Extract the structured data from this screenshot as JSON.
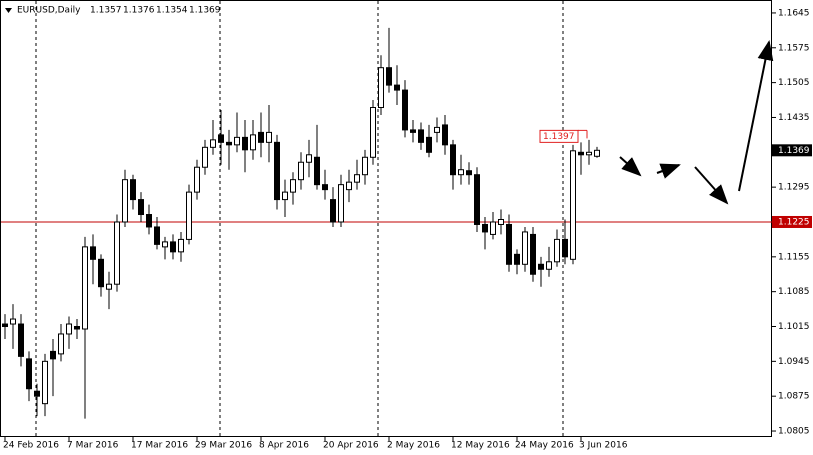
{
  "chart_data": {
    "type": "candlestick",
    "symbol": "EURUSD,Daily",
    "categories": [
      "24 Feb 2016",
      null,
      null,
      null,
      null,
      null,
      null,
      null,
      "7 Mar 2016",
      null,
      null,
      null,
      null,
      null,
      null,
      null,
      "17 Mar 2016",
      null,
      null,
      null,
      null,
      null,
      null,
      null,
      "29 Mar 2016",
      null,
      null,
      null,
      null,
      null,
      null,
      null,
      "8 Apr 2016",
      null,
      null,
      null,
      null,
      null,
      null,
      null,
      "20 Apr 2016",
      null,
      null,
      null,
      null,
      null,
      null,
      null,
      "2 May 2016",
      null,
      null,
      null,
      null,
      null,
      null,
      null,
      "12 May 2016",
      null,
      null,
      null,
      null,
      null,
      null,
      null,
      "24 May 2016",
      null,
      null,
      null,
      null,
      null,
      null,
      null,
      "3 Jun 2016",
      null,
      null
    ],
    "open": [
      1.102,
      1.102,
      1.102,
      1.095,
      1.0885,
      1.086,
      1.0965,
      1.096,
      1.1,
      1.1015,
      1.101,
      1.1175,
      1.115,
      1.109,
      1.11,
      1.1225,
      1.131,
      1.127,
      1.124,
      1.1215,
      1.1175,
      1.1185,
      1.1165,
      1.119,
      1.1285,
      1.1335,
      1.1375,
      1.14,
      1.1385,
      1.138,
      1.1395,
      1.137,
      1.1405,
      1.1385,
      1.1385,
      1.127,
      1.1285,
      1.131,
      1.1345,
      1.1355,
      1.13,
      1.127,
      1.1225,
      1.129,
      1.1305,
      1.132,
      1.1355,
      1.1455,
      1.1535,
      1.15,
      1.149,
      1.141,
      1.141,
      1.1395,
      1.1405,
      1.142,
      1.138,
      1.132,
      1.1328,
      1.132,
      1.122,
      1.12,
      1.122,
      1.122,
      1.116,
      1.114,
      1.12,
      1.114,
      1.113,
      1.1145,
      1.119,
      1.115,
      1.1365,
      1.136,
      1.1357
    ],
    "high": [
      1.104,
      1.106,
      1.104,
      1.0965,
      1.09,
      1.096,
      1.099,
      1.102,
      1.1035,
      1.103,
      1.1195,
      1.12,
      1.116,
      1.1125,
      1.124,
      1.133,
      1.132,
      1.1285,
      1.126,
      1.1235,
      1.1195,
      1.12,
      1.1205,
      1.13,
      1.135,
      1.139,
      1.143,
      1.145,
      1.141,
      1.1445,
      1.143,
      1.143,
      1.1445,
      1.146,
      1.14,
      1.131,
      1.1325,
      1.1365,
      1.139,
      1.142,
      1.133,
      1.1295,
      1.132,
      1.133,
      1.135,
      1.137,
      1.147,
      1.156,
      1.1615,
      1.154,
      1.151,
      1.143,
      1.1425,
      1.142,
      1.1435,
      1.144,
      1.139,
      1.136,
      1.1345,
      1.1335,
      1.1235,
      1.1245,
      1.125,
      1.124,
      1.117,
      1.1215,
      1.1215,
      1.1155,
      1.1175,
      1.121,
      1.123,
      1.138,
      1.1385,
      1.139,
      1.1376
    ],
    "low": [
      1.099,
      1.097,
      1.0935,
      1.0865,
      1.0835,
      1.0835,
      1.0875,
      1.0945,
      1.097,
      1.099,
      1.083,
      1.11,
      1.1075,
      1.105,
      1.1085,
      1.1215,
      1.125,
      1.1225,
      1.12,
      1.117,
      1.115,
      1.115,
      1.1145,
      1.118,
      1.127,
      1.132,
      1.136,
      1.134,
      1.133,
      1.1365,
      1.1325,
      1.135,
      1.1355,
      1.1345,
      1.125,
      1.1235,
      1.126,
      1.129,
      1.1315,
      1.129,
      1.127,
      1.1215,
      1.1215,
      1.1265,
      1.129,
      1.13,
      1.134,
      1.144,
      1.1485,
      1.146,
      1.1395,
      1.1385,
      1.137,
      1.1355,
      1.1385,
      1.136,
      1.129,
      1.13,
      1.13,
      1.1205,
      1.117,
      1.119,
      1.12,
      1.1125,
      1.112,
      1.1125,
      1.1105,
      1.1095,
      1.1115,
      1.1135,
      1.114,
      1.114,
      1.132,
      1.134,
      1.1354
    ],
    "close": [
      1.1015,
      1.103,
      1.0955,
      1.089,
      1.0875,
      1.0945,
      1.095,
      1.1,
      1.102,
      1.101,
      1.1175,
      1.115,
      1.1095,
      1.11,
      1.1225,
      1.131,
      1.127,
      1.124,
      1.1215,
      1.118,
      1.1185,
      1.1165,
      1.119,
      1.1285,
      1.1335,
      1.1375,
      1.139,
      1.1385,
      1.138,
      1.1395,
      1.137,
      1.14,
      1.1385,
      1.1405,
      1.127,
      1.1285,
      1.131,
      1.1345,
      1.136,
      1.13,
      1.129,
      1.1225,
      1.13,
      1.1305,
      1.132,
      1.1355,
      1.1455,
      1.1535,
      1.15,
      1.149,
      1.141,
      1.1405,
      1.1385,
      1.1365,
      1.1415,
      1.138,
      1.132,
      1.133,
      1.132,
      1.122,
      1.1205,
      1.1225,
      1.123,
      1.114,
      1.114,
      1.1205,
      1.112,
      1.113,
      1.1145,
      1.119,
      1.1155,
      1.1368,
      1.136,
      1.1365,
      1.1369
    ],
    "ylim": [
      1.0793,
      1.1671
    ],
    "yticks": [
      1.1645,
      1.1575,
      1.1505,
      1.1435,
      1.1295,
      1.1155,
      1.1085,
      1.1015,
      1.0945,
      1.0875,
      1.0805
    ],
    "hline": {
      "value": 1.1225,
      "color": "#c00000"
    },
    "price_label": {
      "value": 1.1397,
      "color": "#e02020"
    },
    "up_color": "#ffffff",
    "down_color": "#000000"
  }
}
